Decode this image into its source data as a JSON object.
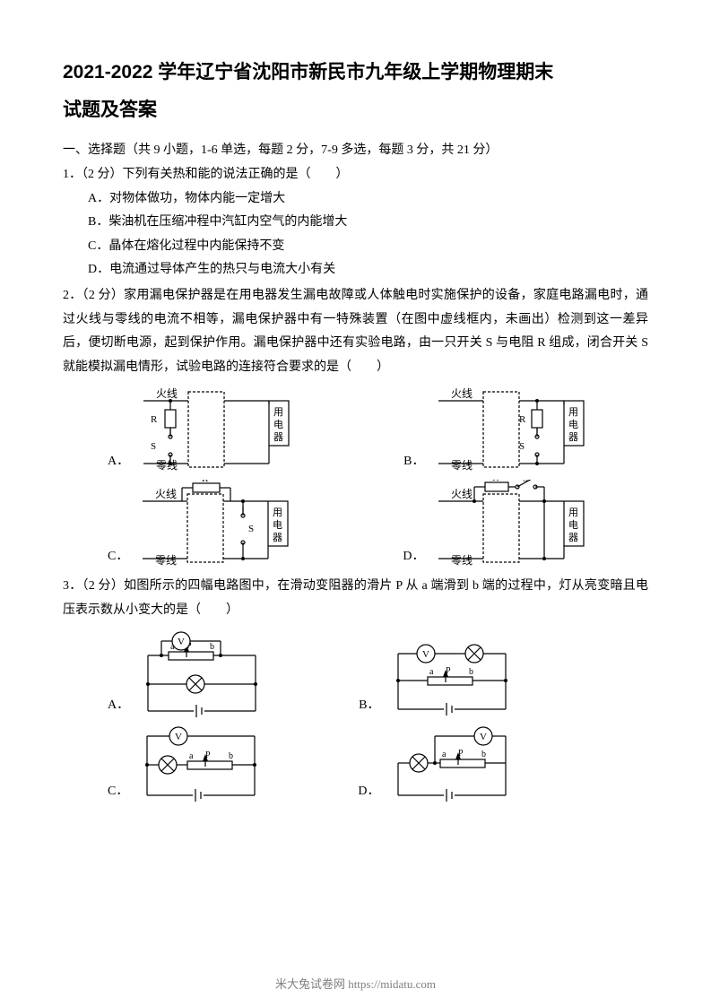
{
  "doc": {
    "title_line1": "2021-2022 学年辽宁省沈阳市新民市九年级上学期物理期末",
    "title_line2": "试题及答案"
  },
  "section1": {
    "header": "一、选择题（共 9 小题，1-6 单选，每题 2 分，7-9 多选，每题 3 分，共 21 分）"
  },
  "q1": {
    "stem": "1．（2 分）下列有关热和能的说法正确的是（　　）",
    "A": "A．对物体做功，物体内能一定增大",
    "B": "B．柴油机在压缩冲程中汽缸内空气的内能增大",
    "C": "C．晶体在熔化过程中内能保持不变",
    "D": "D．电流通过导体产生的热只与电流大小有关"
  },
  "q2": {
    "stem": "2．（2 分）家用漏电保护器是在用电器发生漏电故障或人体触电时实施保护的设备，家庭电路漏电时，通过火线与零线的电流不相等，漏电保护器中有一特殊装置（在图中虚线框内，未画出）检测到这一差异后，便切断电源，起到保护作用。漏电保护器中还有实验电路，由一只开关 S 与电阻 R 组成，闭合开关 S 就能模拟漏电情形，试验电路的连接符合要求的是（　　）",
    "A": "A．",
    "B": "B．",
    "C": "C．",
    "D": "D．",
    "labels": {
      "hot": "火线",
      "neutral": "零线",
      "appliance": "用\n电\n器",
      "R": "R",
      "S": "S"
    }
  },
  "q3": {
    "stem": "3．（2 分）如图所示的四幅电路图中，在滑动变阻器的滑片 P 从 a 端滑到 b 端的过程中，灯从亮变暗且电压表示数从小变大的是（　　）",
    "A": "A．",
    "B": "B．",
    "C": "C．",
    "D": "D．",
    "labels": {
      "V": "V",
      "a": "a",
      "P": "P",
      "b": "b"
    }
  },
  "footer": {
    "text": "米大兔试卷网 https://midatu.com"
  },
  "style": {
    "page_bg": "#ffffff",
    "text_color": "#000000",
    "footer_color": "#808080",
    "stroke": "#000000",
    "dash": "3,2",
    "linewidth": 1.2,
    "title_fontsize": 21,
    "body_fontsize": 14
  }
}
